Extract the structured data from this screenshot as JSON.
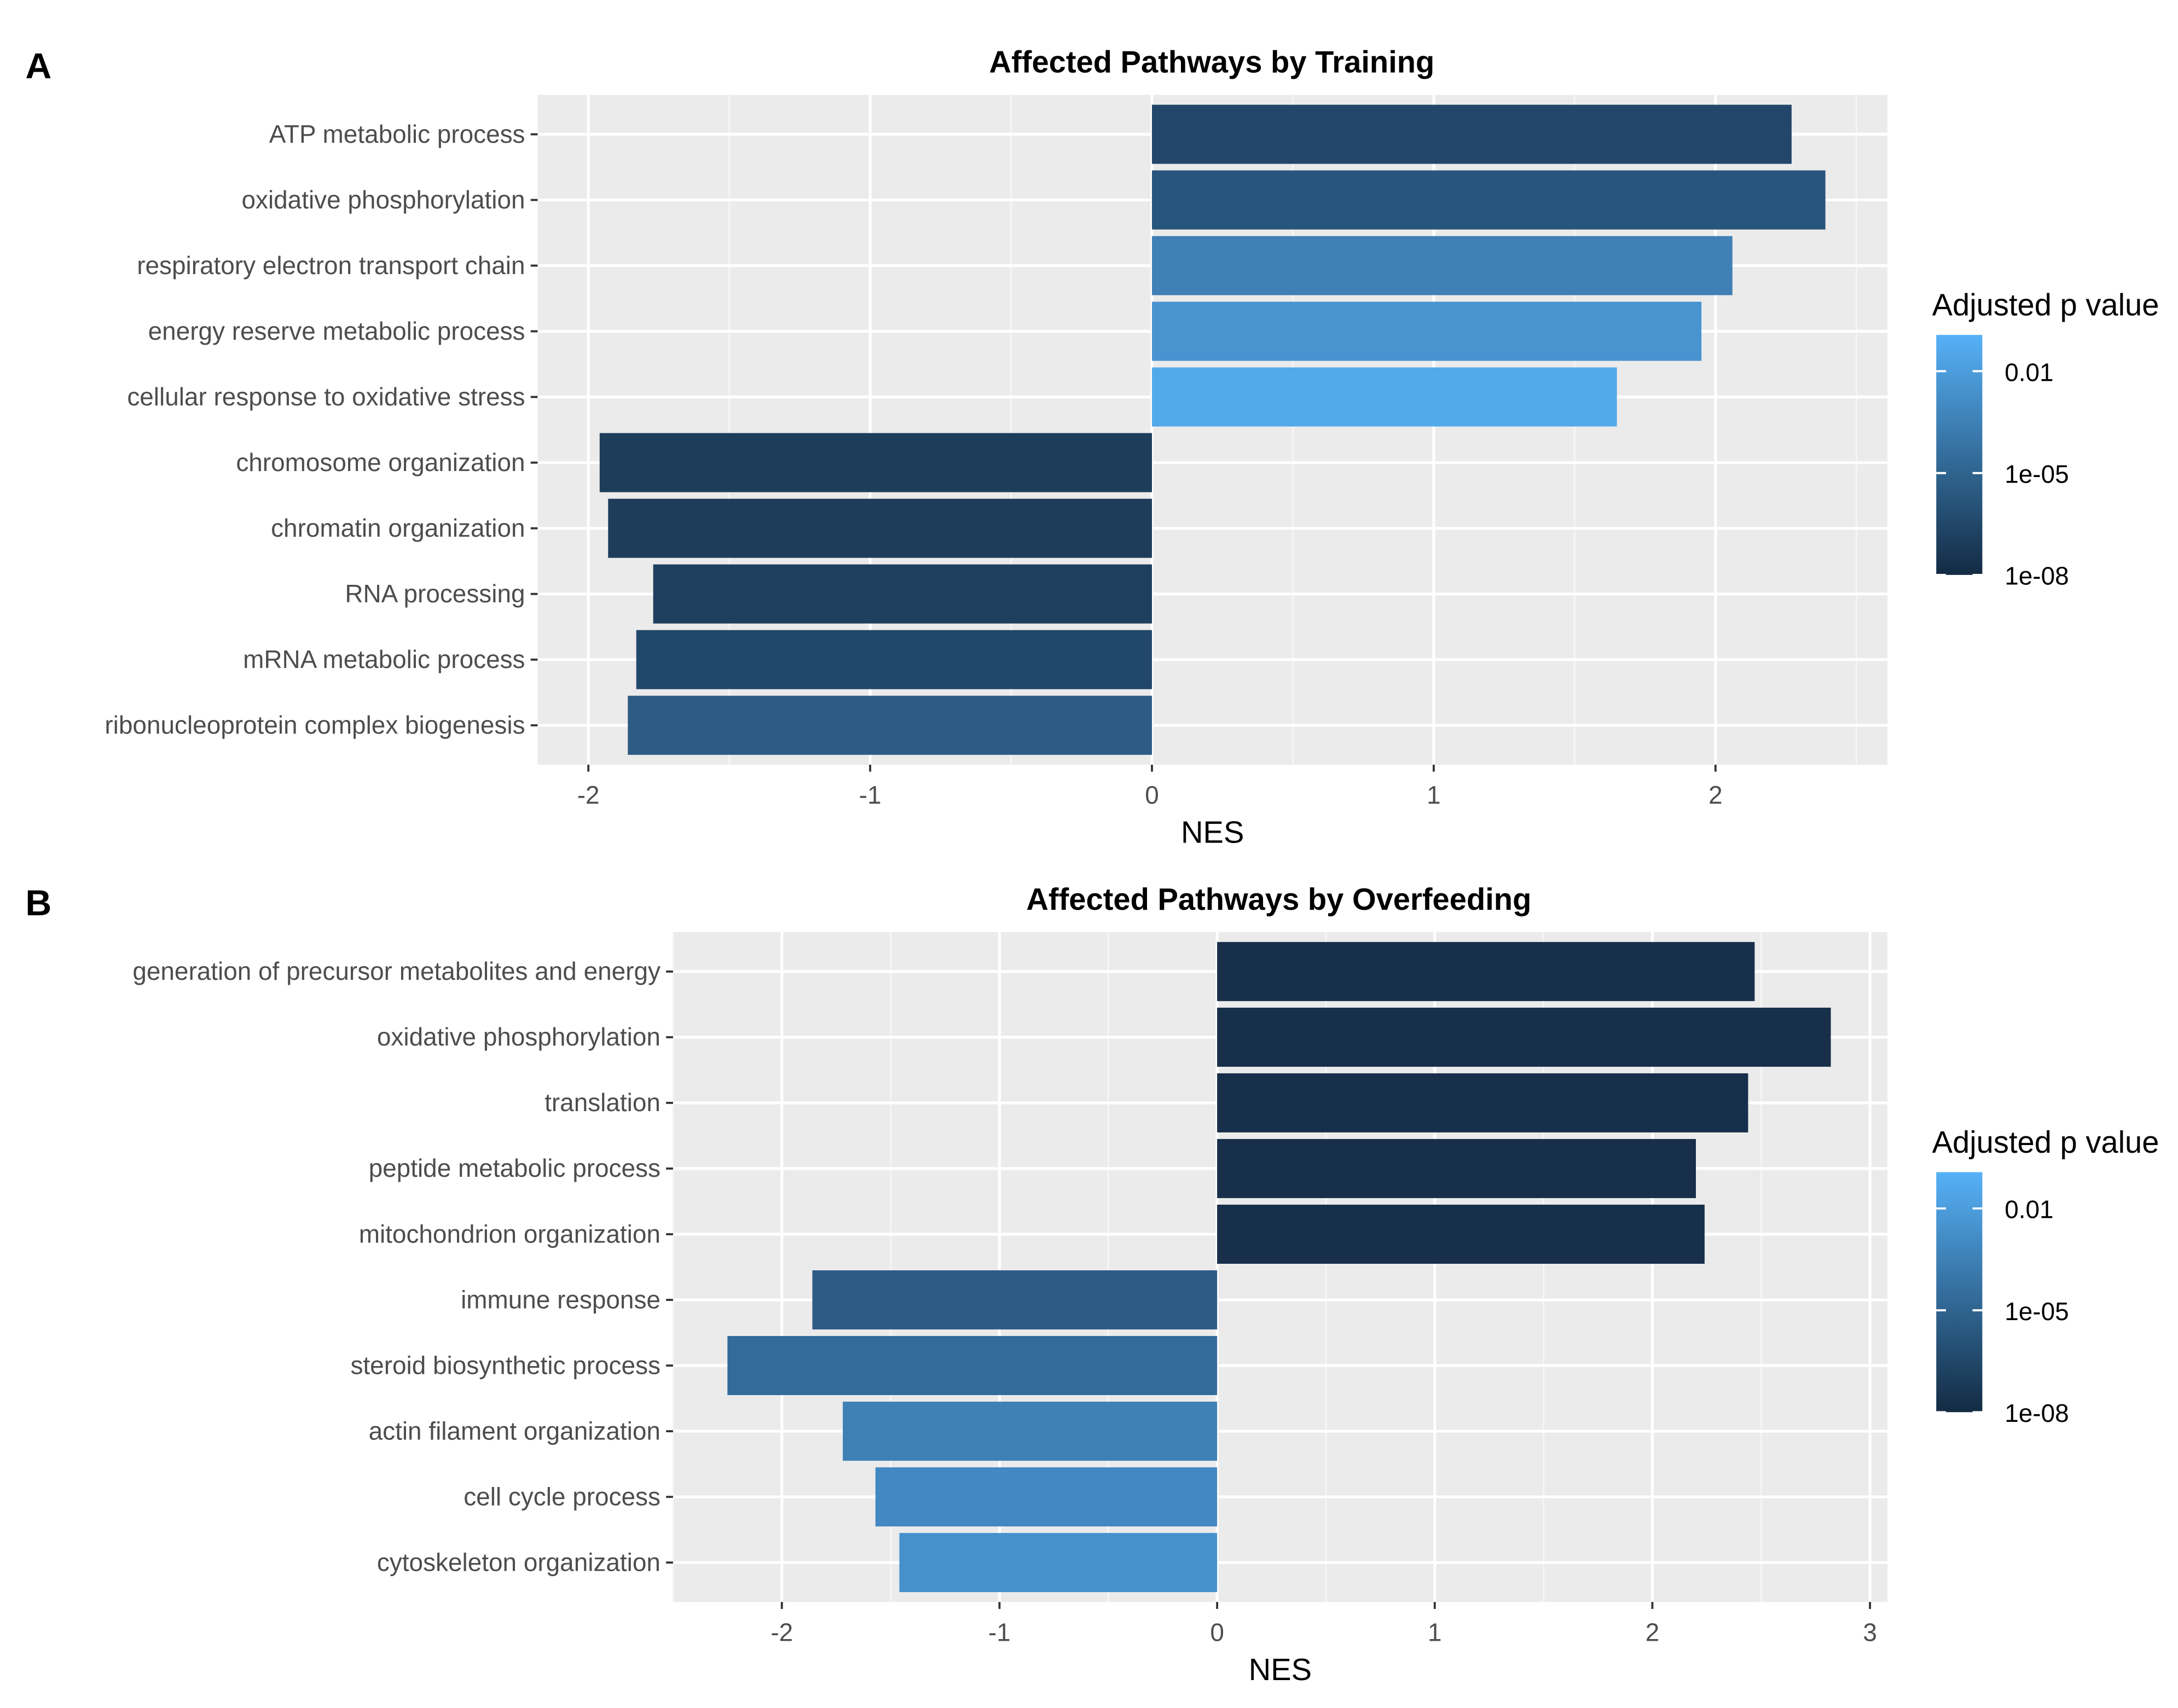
{
  "chart_data": [
    {
      "type": "bar",
      "orientation": "horizontal",
      "panel_label": "A",
      "title": "Affected Pathways by Training",
      "xlabel": "NES",
      "ylabel": "",
      "xlim": [
        -2.18,
        2.61
      ],
      "xticks": [
        -2,
        -1,
        0,
        1,
        2
      ],
      "xtick_labels": [
        "-2",
        "-1",
        "0",
        "1",
        "2"
      ],
      "grid": true,
      "categories": [
        "ATP metabolic process",
        "oxidative phosphorylation",
        "respiratory electron transport chain",
        "energy reserve metabolic process",
        "cellular response to oxidative stress",
        "chromosome organization",
        "chromatin organization",
        "RNA processing",
        "mRNA metabolic process",
        "ribonucleoprotein complex biogenesis"
      ],
      "values": [
        2.27,
        2.39,
        2.06,
        1.95,
        1.65,
        -1.96,
        -1.93,
        -1.77,
        -1.83,
        -1.86
      ],
      "colors": [
        "#22476a",
        "#28557c",
        "#3f80b5",
        "#4893d0",
        "#52aaea",
        "#1e3d5b",
        "#1e3d5b",
        "#1e3f5e",
        "#21476a",
        "#2d5b85"
      ],
      "legend": {
        "title": "Adjusted p value",
        "position": "right",
        "ticks": [
          "0.01",
          "1e-05",
          "1e-08"
        ],
        "low_color": "#132b43",
        "high_color": "#56b1f7"
      }
    },
    {
      "type": "bar",
      "orientation": "horizontal",
      "panel_label": "B",
      "title": "Affected Pathways by Overfeeding",
      "xlabel": "NES",
      "ylabel": "",
      "xlim": [
        -2.5,
        3.08
      ],
      "xticks": [
        -2,
        -1,
        0,
        1,
        2,
        3
      ],
      "xtick_labels": [
        "-2",
        "-1",
        "0",
        "1",
        "2",
        "3"
      ],
      "grid": true,
      "categories": [
        "generation of precursor metabolites and energy",
        "oxidative phosphorylation",
        "translation",
        "peptide metabolic process",
        "mitochondrion organization",
        "immune response",
        "steroid biosynthetic process",
        "actin filament organization",
        "cell cycle process",
        "cytoskeleton organization"
      ],
      "values": [
        2.47,
        2.82,
        2.44,
        2.2,
        2.24,
        -1.86,
        -2.25,
        -1.72,
        -1.57,
        -1.46
      ],
      "colors": [
        "#172f4a",
        "#172f4a",
        "#172f4a",
        "#172f4a",
        "#172f4a",
        "#2d5b85",
        "#336b9b",
        "#3f80b5",
        "#4388c3",
        "#4690cc"
      ],
      "legend": {
        "title": "Adjusted p value",
        "position": "right",
        "ticks": [
          "0.01",
          "1e-05",
          "1e-08"
        ],
        "low_color": "#132b43",
        "high_color": "#56b1f7"
      }
    }
  ]
}
